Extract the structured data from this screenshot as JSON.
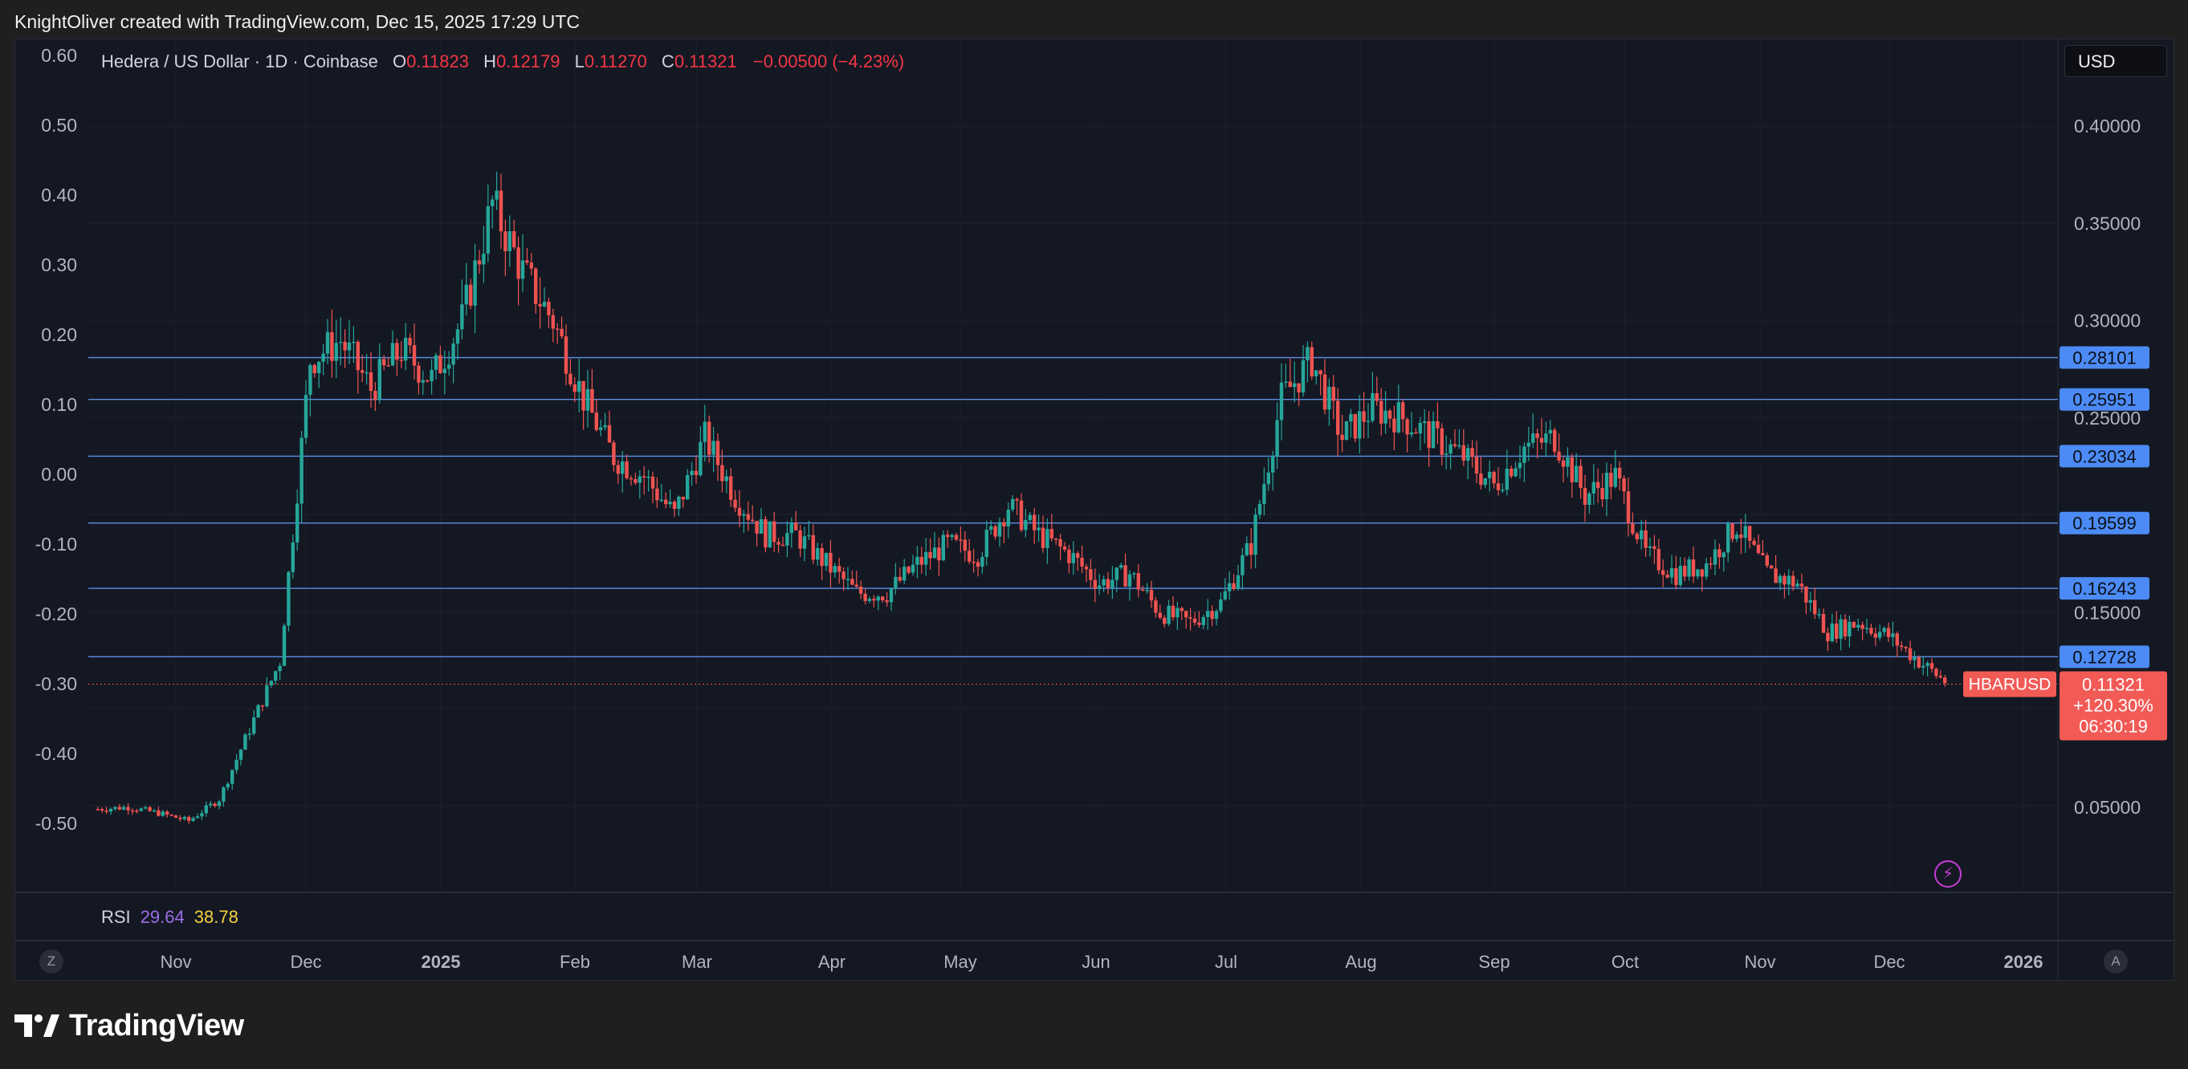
{
  "credit": "KnightOliver created with TradingView.com, Dec 15, 2025 17:29 UTC",
  "legend": {
    "symbol": "Hedera / US Dollar · 1D · Coinbase",
    "o_label": "O",
    "o_value": "0.11823",
    "h_label": "H",
    "h_value": "0.12179",
    "l_label": "L",
    "l_value": "0.11270",
    "c_label": "C",
    "c_value": "0.11321",
    "change": "−0.00500 (−4.23%)"
  },
  "currency_button": "USD",
  "rsi": {
    "name": "RSI",
    "value1": "29.64",
    "value2": "38.78"
  },
  "buttons": {
    "zoom": "Z",
    "auto": "A"
  },
  "footer_brand": "TradingView",
  "colors": {
    "up": "#26a69a",
    "down": "#ef5350",
    "hline": "#5b8ee6",
    "price_tag": "#f25a56",
    "label_bg": "#4c8bf5"
  },
  "chart_data": {
    "type": "candlestick",
    "symbol": "HBARUSD",
    "timeframe": "1D",
    "left_axis": {
      "ticks": [
        "0.60",
        "0.50",
        "0.40",
        "0.30",
        "0.20",
        "0.10",
        "0.00",
        "-0.10",
        "-0.20",
        "-0.30",
        "-0.40",
        "-0.50"
      ]
    },
    "right_axis": {
      "ticks": [
        "0.40000",
        "0.35000",
        "0.30000",
        "0.25000",
        "0.15000",
        "0.05000"
      ]
    },
    "x_axis": {
      "ticks": [
        "Nov",
        "Dec",
        "2025",
        "Feb",
        "Mar",
        "Apr",
        "May",
        "Jun",
        "Jul",
        "Aug",
        "Sep",
        "Oct",
        "Nov",
        "Dec",
        "2026"
      ]
    },
    "horizontal_levels": [
      "0.28101",
      "0.25951",
      "0.23034",
      "0.19599",
      "0.16243",
      "0.12728"
    ],
    "last_price": {
      "symbol_label": "HBARUSD",
      "price": "0.11321",
      "change": "+120.30%",
      "countdown": "06:30:19"
    },
    "weekly_closes": [
      {
        "date": "2024-10-14",
        "close": 0.049
      },
      {
        "date": "2024-10-21",
        "close": 0.05
      },
      {
        "date": "2024-10-28",
        "close": 0.047
      },
      {
        "date": "2024-11-04",
        "close": 0.043
      },
      {
        "date": "2024-11-11",
        "close": 0.054
      },
      {
        "date": "2024-11-18",
        "close": 0.09
      },
      {
        "date": "2024-11-25",
        "close": 0.125
      },
      {
        "date": "2024-12-02",
        "close": 0.28
      },
      {
        "date": "2024-12-09",
        "close": 0.29
      },
      {
        "date": "2024-12-16",
        "close": 0.265
      },
      {
        "date": "2024-12-23",
        "close": 0.285
      },
      {
        "date": "2024-12-30",
        "close": 0.27
      },
      {
        "date": "2025-01-06",
        "close": 0.3
      },
      {
        "date": "2025-01-13",
        "close": 0.36
      },
      {
        "date": "2025-01-20",
        "close": 0.325
      },
      {
        "date": "2025-01-27",
        "close": 0.3
      },
      {
        "date": "2025-02-03",
        "close": 0.26
      },
      {
        "date": "2025-02-10",
        "close": 0.23
      },
      {
        "date": "2025-02-17",
        "close": 0.22
      },
      {
        "date": "2025-02-24",
        "close": 0.2
      },
      {
        "date": "2025-03-03",
        "close": 0.24
      },
      {
        "date": "2025-03-10",
        "close": 0.21
      },
      {
        "date": "2025-03-17",
        "close": 0.19
      },
      {
        "date": "2025-03-24",
        "close": 0.19
      },
      {
        "date": "2025-03-31",
        "close": 0.175
      },
      {
        "date": "2025-04-07",
        "close": 0.16
      },
      {
        "date": "2025-04-14",
        "close": 0.16
      },
      {
        "date": "2025-04-21",
        "close": 0.175
      },
      {
        "date": "2025-04-28",
        "close": 0.185
      },
      {
        "date": "2025-05-05",
        "close": 0.18
      },
      {
        "date": "2025-05-12",
        "close": 0.205
      },
      {
        "date": "2025-05-19",
        "close": 0.19
      },
      {
        "date": "2025-05-26",
        "close": 0.18
      },
      {
        "date": "2025-06-02",
        "close": 0.165
      },
      {
        "date": "2025-06-09",
        "close": 0.17
      },
      {
        "date": "2025-06-16",
        "close": 0.15
      },
      {
        "date": "2025-06-23",
        "close": 0.145
      },
      {
        "date": "2025-06-30",
        "close": 0.155
      },
      {
        "date": "2025-07-07",
        "close": 0.185
      },
      {
        "date": "2025-07-14",
        "close": 0.26
      },
      {
        "date": "2025-07-21",
        "close": 0.28
      },
      {
        "date": "2025-07-28",
        "close": 0.24
      },
      {
        "date": "2025-08-04",
        "close": 0.255
      },
      {
        "date": "2025-08-11",
        "close": 0.25
      },
      {
        "date": "2025-08-18",
        "close": 0.24
      },
      {
        "date": "2025-08-25",
        "close": 0.23
      },
      {
        "date": "2025-09-01",
        "close": 0.215
      },
      {
        "date": "2025-09-08",
        "close": 0.235
      },
      {
        "date": "2025-09-15",
        "close": 0.24
      },
      {
        "date": "2025-09-22",
        "close": 0.21
      },
      {
        "date": "2025-09-29",
        "close": 0.22
      },
      {
        "date": "2025-10-06",
        "close": 0.18
      },
      {
        "date": "2025-10-13",
        "close": 0.17
      },
      {
        "date": "2025-10-20",
        "close": 0.175
      },
      {
        "date": "2025-10-27",
        "close": 0.195
      },
      {
        "date": "2025-11-03",
        "close": 0.17
      },
      {
        "date": "2025-11-10",
        "close": 0.165
      },
      {
        "date": "2025-11-17",
        "close": 0.14
      },
      {
        "date": "2025-11-24",
        "close": 0.145
      },
      {
        "date": "2025-12-01",
        "close": 0.138
      },
      {
        "date": "2025-12-08",
        "close": 0.125
      },
      {
        "date": "2025-12-15",
        "close": 0.113
      }
    ]
  }
}
